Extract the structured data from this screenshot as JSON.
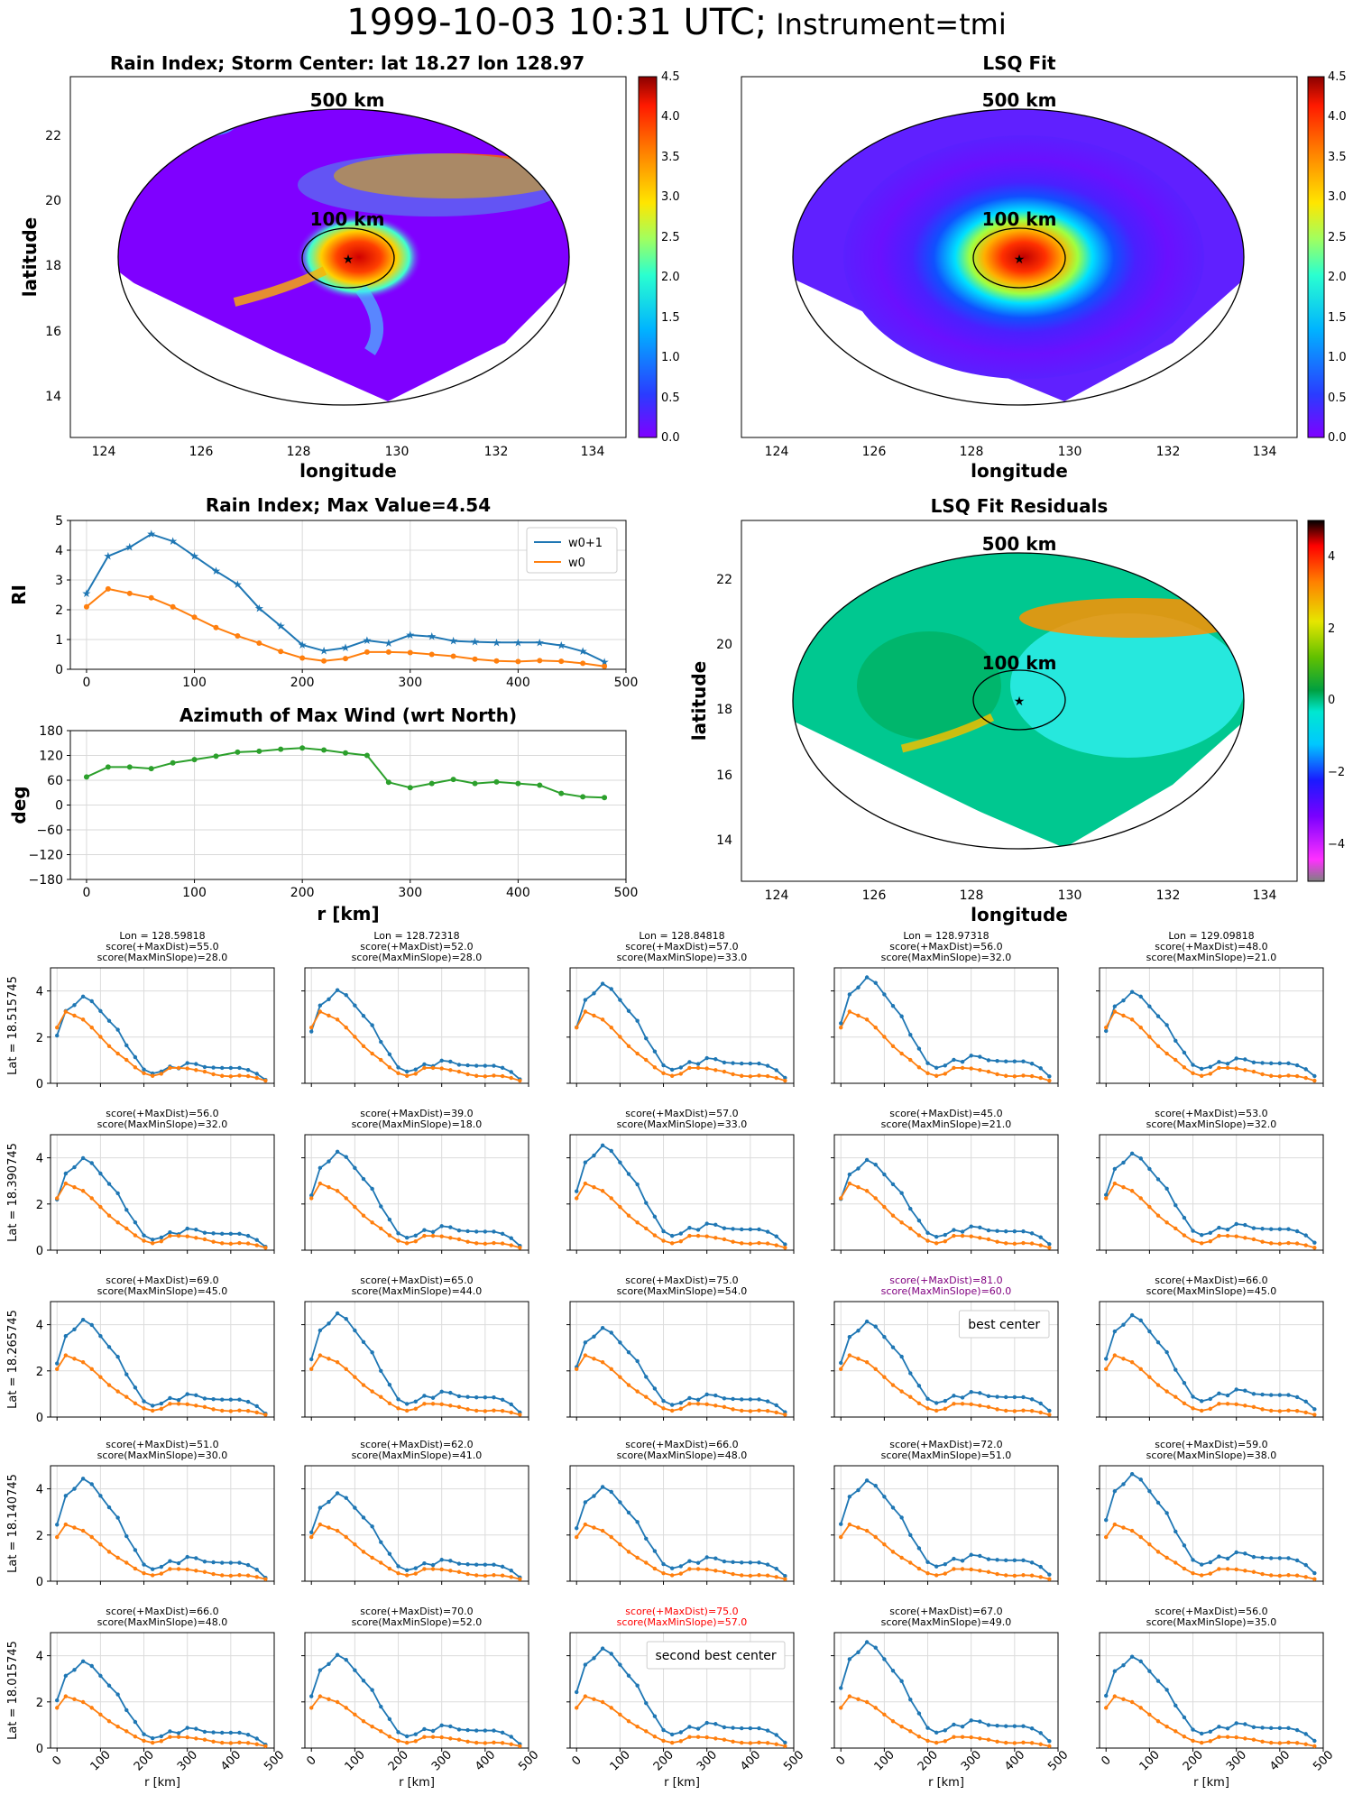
{
  "suptitle": {
    "date": "1999-10-03 10:31 UTC;",
    "instrument": "Instrument=tmi"
  },
  "maps": {
    "rain": {
      "title": "Rain Index; Storm Center: lat 18.27 lon 128.97",
      "xlabel": "longitude",
      "ylabel": "latitude",
      "ring_outer": "500 km",
      "ring_inner": "100 km",
      "xticks": [
        "124",
        "126",
        "128",
        "130",
        "132",
        "134"
      ],
      "yticks": [
        "14",
        "16",
        "18",
        "20",
        "22"
      ],
      "cbar_ticks": [
        "0.0",
        "0.5",
        "1.0",
        "1.5",
        "2.0",
        "2.5",
        "3.0",
        "3.5",
        "4.0",
        "4.5"
      ]
    },
    "lsq": {
      "title": "LSQ Fit",
      "xlabel": "longitude",
      "ring_outer": "500 km",
      "ring_inner": "100 km",
      "xticks": [
        "124",
        "126",
        "128",
        "130",
        "132",
        "134"
      ],
      "cbar_ticks": [
        "0.0",
        "0.5",
        "1.0",
        "1.5",
        "2.0",
        "2.5",
        "3.0",
        "3.5",
        "4.0",
        "4.5"
      ]
    },
    "resid": {
      "title": "LSQ Fit Residuals",
      "xlabel": "longitude",
      "ylabel": "latitude",
      "ring_outer": "500 km",
      "ring_inner": "100 km",
      "xticks": [
        "124",
        "126",
        "128",
        "130",
        "132",
        "134"
      ],
      "yticks": [
        "14",
        "16",
        "18",
        "20",
        "22"
      ],
      "cbar_ticks": [
        "−4",
        "−2",
        "0",
        "2",
        "4"
      ]
    }
  },
  "chart_data": [
    {
      "type": "line",
      "title": "Rain Index; Max Value=4.54",
      "ylabel": "RI",
      "xlim": [
        -15,
        500
      ],
      "ylim": [
        0,
        5
      ],
      "x": [
        0,
        20,
        40,
        60,
        80,
        100,
        120,
        140,
        160,
        180,
        200,
        220,
        240,
        260,
        280,
        300,
        320,
        340,
        360,
        380,
        400,
        420,
        440,
        460,
        480
      ],
      "series": [
        {
          "name": "w0+1",
          "color": "#1f77b4",
          "values": [
            2.55,
            3.8,
            4.1,
            4.54,
            4.3,
            3.8,
            3.3,
            2.85,
            2.05,
            1.45,
            0.82,
            0.62,
            0.72,
            0.97,
            0.88,
            1.15,
            1.1,
            0.95,
            0.92,
            0.9,
            0.9,
            0.9,
            0.8,
            0.6,
            0.25
          ]
        },
        {
          "name": "w0",
          "color": "#ff7f0e",
          "values": [
            2.1,
            2.7,
            2.55,
            2.4,
            2.1,
            1.75,
            1.4,
            1.12,
            0.88,
            0.6,
            0.38,
            0.28,
            0.36,
            0.58,
            0.58,
            0.56,
            0.5,
            0.44,
            0.34,
            0.28,
            0.26,
            0.29,
            0.27,
            0.2,
            0.1
          ]
        }
      ],
      "xticks": [
        "0",
        "100",
        "200",
        "300",
        "400",
        "500"
      ],
      "yticks": [
        "0",
        "1",
        "2",
        "3",
        "4",
        "5"
      ]
    },
    {
      "type": "line",
      "title": "Azimuth of Max Wind (wrt North)",
      "ylabel": "deg",
      "xlabel": "r [km]",
      "xlim": [
        -15,
        500
      ],
      "ylim": [
        -180,
        180
      ],
      "x": [
        0,
        20,
        40,
        60,
        80,
        100,
        120,
        140,
        160,
        180,
        200,
        220,
        240,
        260,
        280,
        300,
        320,
        340,
        360,
        380,
        400,
        420,
        440,
        460,
        480
      ],
      "series": [
        {
          "color": "#2ca02c",
          "values": [
            68,
            92,
            92,
            88,
            102,
            110,
            118,
            128,
            130,
            135,
            138,
            133,
            126,
            120,
            55,
            42,
            52,
            62,
            52,
            56,
            52,
            48,
            28,
            20,
            18
          ]
        }
      ],
      "xticks": [
        "0",
        "100",
        "200",
        "300",
        "400",
        "500"
      ],
      "yticks": [
        "180",
        "120",
        "60",
        "0",
        "−60",
        "−120",
        "−180"
      ]
    },
    {
      "type": "line",
      "description": "5x5 grid of candidate centers; each panel radial profile of w0+1 (blue) and w0 (orange)",
      "xlim": [
        -15,
        500
      ],
      "ylim": [
        0,
        5
      ],
      "columns": [
        {
          "lon": "Lon = 128.59818"
        },
        {
          "lon": "Lon = 128.72318"
        },
        {
          "lon": "Lon = 128.84818"
        },
        {
          "lon": "Lon = 128.97318"
        },
        {
          "lon": "Lon = 129.09818"
        }
      ],
      "rows": [
        {
          "lat": "Lat = 18.515745"
        },
        {
          "lat": "Lat = 18.390745"
        },
        {
          "lat": "Lat = 18.265745"
        },
        {
          "lat": "Lat = 18.140745"
        },
        {
          "lat": "Lat = 18.015745"
        }
      ],
      "scores": [
        [
          [
            "score(+MaxDist)=55.0",
            "score(MaxMinSlope)=28.0"
          ],
          [
            "score(+MaxDist)=52.0",
            "score(MaxMinSlope)=28.0"
          ],
          [
            "score(+MaxDist)=57.0",
            "score(MaxMinSlope)=33.0"
          ],
          [
            "score(+MaxDist)=56.0",
            "score(MaxMinSlope)=32.0"
          ],
          [
            "score(+MaxDist)=48.0",
            "score(MaxMinSlope)=21.0"
          ]
        ],
        [
          [
            "score(+MaxDist)=56.0",
            "score(MaxMinSlope)=32.0"
          ],
          [
            "score(+MaxDist)=39.0",
            "score(MaxMinSlope)=18.0"
          ],
          [
            "score(+MaxDist)=57.0",
            "score(MaxMinSlope)=33.0"
          ],
          [
            "score(+MaxDist)=45.0",
            "score(MaxMinSlope)=21.0"
          ],
          [
            "score(+MaxDist)=53.0",
            "score(MaxMinSlope)=32.0"
          ]
        ],
        [
          [
            "score(+MaxDist)=69.0",
            "score(MaxMinSlope)=45.0"
          ],
          [
            "score(+MaxDist)=65.0",
            "score(MaxMinSlope)=44.0"
          ],
          [
            "score(+MaxDist)=75.0",
            "score(MaxMinSlope)=54.0"
          ],
          [
            "score(+MaxDist)=81.0",
            "score(MaxMinSlope)=60.0"
          ],
          [
            "score(+MaxDist)=66.0",
            "score(MaxMinSlope)=45.0"
          ]
        ],
        [
          [
            "score(+MaxDist)=51.0",
            "score(MaxMinSlope)=30.0"
          ],
          [
            "score(+MaxDist)=62.0",
            "score(MaxMinSlope)=41.0"
          ],
          [
            "score(+MaxDist)=66.0",
            "score(MaxMinSlope)=48.0"
          ],
          [
            "score(+MaxDist)=72.0",
            "score(MaxMinSlope)=51.0"
          ],
          [
            "score(+MaxDist)=59.0",
            "score(MaxMinSlope)=38.0"
          ]
        ],
        [
          [
            "score(+MaxDist)=66.0",
            "score(MaxMinSlope)=48.0"
          ],
          [
            "score(+MaxDist)=70.0",
            "score(MaxMinSlope)=52.0"
          ],
          [
            "score(+MaxDist)=75.0",
            "score(MaxMinSlope)=57.0"
          ],
          [
            "score(+MaxDist)=67.0",
            "score(MaxMinSlope)=49.0"
          ],
          [
            "score(+MaxDist)=56.0",
            "score(MaxMinSlope)=35.0"
          ]
        ]
      ],
      "highlights": [
        {
          "row": 2,
          "col": 3,
          "label": "best center",
          "color": "#800080"
        },
        {
          "row": 4,
          "col": 2,
          "label": "second best center",
          "color": "#ff0000"
        }
      ],
      "xticks": [
        "0",
        "100",
        "200",
        "300",
        "400",
        "500"
      ],
      "yticks": [
        "0",
        "2",
        "4"
      ],
      "xlabel": "r [km]"
    }
  ]
}
